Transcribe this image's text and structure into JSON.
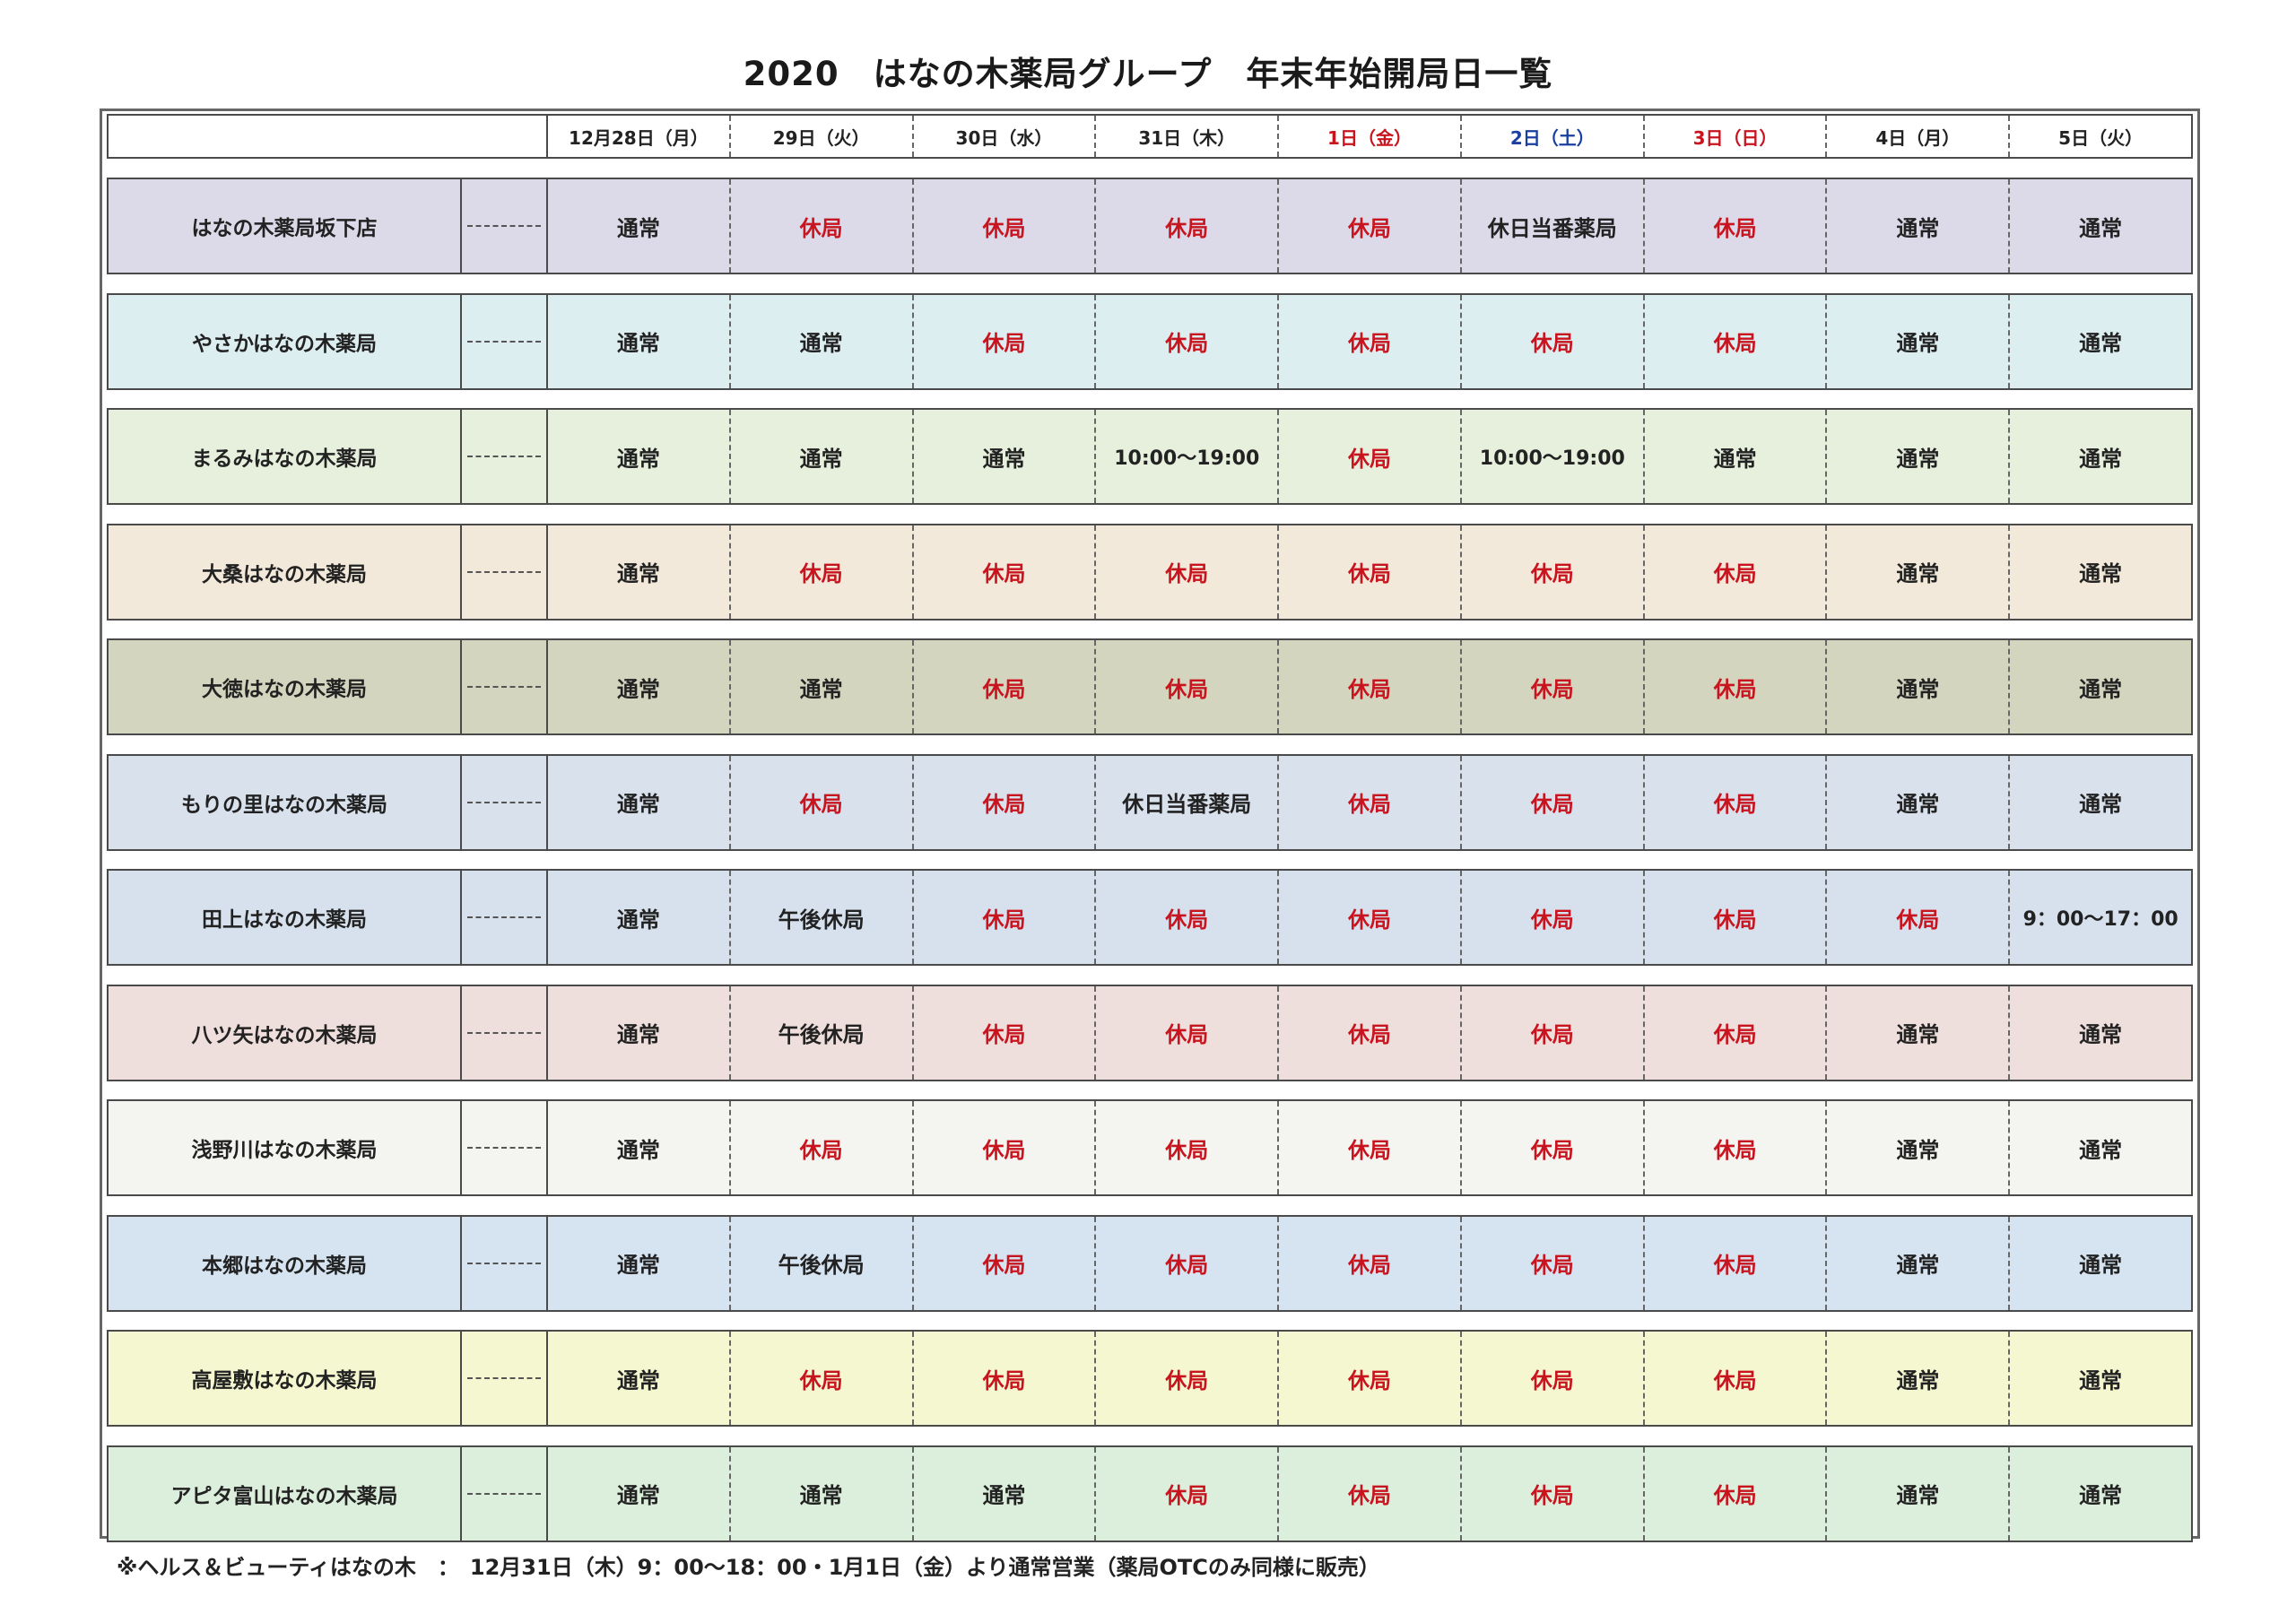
{
  "title": "2020　はなの木薬局グループ　年末年始開局日一覧",
  "days": [
    {
      "label": "12月28日（月）",
      "type": "normal"
    },
    {
      "label": "29日（火）",
      "type": "normal"
    },
    {
      "label": "30日（水）",
      "type": "normal"
    },
    {
      "label": "31日（木）",
      "type": "normal"
    },
    {
      "label": "1日（金）",
      "type": "hol"
    },
    {
      "label": "2日（土）",
      "type": "sat"
    },
    {
      "label": "3日（日）",
      "type": "sun"
    },
    {
      "label": "4日（月）",
      "type": "normal"
    },
    {
      "label": "5日（火）",
      "type": "normal"
    }
  ],
  "stores": [
    {
      "name": "はなの木薬局坂下店",
      "color": "#dcd9e8",
      "hours": [
        "通常",
        "休局",
        "休局",
        "休局",
        "休局",
        "休日当番薬局",
        "休局",
        "通常",
        "通常"
      ]
    },
    {
      "name": "やさかはなの木薬局",
      "color": "#ddeef1",
      "hours": [
        "通常",
        "通常",
        "休局",
        "休局",
        "休局",
        "休局",
        "休局",
        "通常",
        "通常"
      ]
    },
    {
      "name": "まるみはなの木薬局",
      "color": "#e6f0dc",
      "hours": [
        "通常",
        "通常",
        "通常",
        "10:00～19:00",
        "休局",
        "10:00～19:00",
        "通常",
        "通常",
        "通常"
      ]
    },
    {
      "name": "大桑はなの木薬局",
      "color": "#f3e9da",
      "hours": [
        "通常",
        "休局",
        "休局",
        "休局",
        "休局",
        "休局",
        "休局",
        "通常",
        "通常"
      ]
    },
    {
      "name": "大徳はなの木薬局",
      "color": "#d4d5bf",
      "hours": [
        "通常",
        "通常",
        "休局",
        "休局",
        "休局",
        "休局",
        "休局",
        "通常",
        "通常"
      ]
    },
    {
      "name": "もりの里はなの木薬局",
      "color": "#d9e1ed",
      "hours": [
        "通常",
        "休局",
        "休局",
        "休日当番薬局",
        "休局",
        "休局",
        "休局",
        "通常",
        "通常"
      ]
    },
    {
      "name": "田上はなの木薬局",
      "color": "#d7e1ee",
      "hours": [
        "通常",
        "午後休局",
        "休局",
        "休局",
        "休局",
        "休局",
        "休局",
        "休局",
        "9：00～17：00"
      ]
    },
    {
      "name": "八ツ矢はなの木薬局",
      "color": "#efdfdc",
      "hours": [
        "通常",
        "午後休局",
        "休局",
        "休局",
        "休局",
        "休局",
        "休局",
        "通常",
        "通常"
      ]
    },
    {
      "name": "浅野川はなの木薬局",
      "color": "#f4f4f0",
      "hours": [
        "通常",
        "休局",
        "休局",
        "休局",
        "休局",
        "休局",
        "休局",
        "通常",
        "通常"
      ]
    },
    {
      "name": "本郷はなの木薬局",
      "color": "#d6e4f2",
      "hours": [
        "通常",
        "午後休局",
        "休局",
        "休局",
        "休局",
        "休局",
        "休局",
        "通常",
        "通常"
      ]
    },
    {
      "name": "高屋敷はなの木薬局",
      "color": "#f4f7cf",
      "hours": [
        "通常",
        "休局",
        "休局",
        "休局",
        "休局",
        "休局",
        "休局",
        "通常",
        "通常"
      ]
    },
    {
      "name": "アピタ富山はなの木薬局",
      "color": "#dcefdc",
      "hours": [
        "通常",
        "通常",
        "通常",
        "休局",
        "休局",
        "休局",
        "休局",
        "通常",
        "通常"
      ]
    }
  ],
  "closed_label": "休局",
  "footnote": "※ヘルス＆ビューティはなの木　：　12月31日（木）9：00～18：00・1月1日（金）より通常営業（薬局OTCのみ同様に販売）"
}
